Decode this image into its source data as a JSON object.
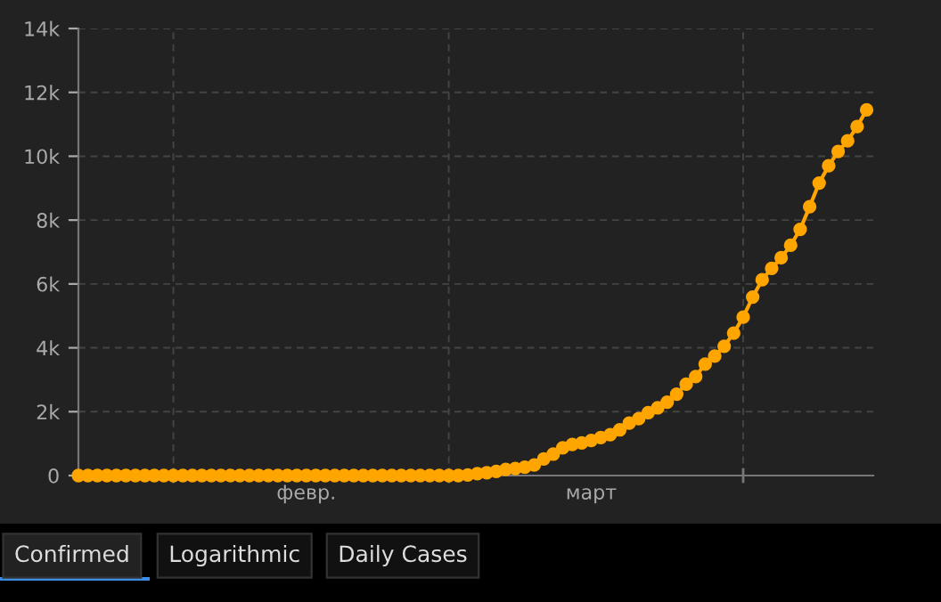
{
  "chart_data": {
    "type": "line",
    "marker": "circle",
    "line_style": "solid",
    "categories": [
      null,
      null,
      null,
      null,
      null,
      null,
      null,
      null,
      null,
      null,
      null,
      null,
      null,
      null,
      null,
      null,
      null,
      null,
      null,
      null,
      null,
      null,
      null,
      null,
      "февр.",
      null,
      null,
      null,
      null,
      null,
      null,
      null,
      null,
      null,
      null,
      null,
      null,
      null,
      null,
      null,
      null,
      null,
      null,
      null,
      null,
      null,
      null,
      null,
      null,
      null,
      null,
      null,
      null,
      null,
      "март",
      null,
      null,
      null,
      null,
      null,
      null,
      null,
      null,
      null,
      null,
      null,
      null,
      null,
      null,
      null,
      null,
      null,
      null,
      null,
      null,
      null,
      null,
      null,
      null,
      null,
      null,
      null,
      null,
      null
    ],
    "series": [
      {
        "color": "#ffa500",
        "values": [
          0,
          0,
          0,
          0,
          0,
          0,
          0,
          0,
          0,
          0,
          0,
          0,
          0,
          0,
          0,
          0,
          0,
          0,
          0,
          0,
          0,
          0,
          0,
          0,
          0,
          0,
          0,
          0,
          0,
          0,
          0,
          0,
          0,
          0,
          0,
          0,
          0,
          0,
          0,
          0,
          0,
          20,
          60,
          90,
          130,
          190,
          220,
          260,
          330,
          520,
          670,
          870,
          970,
          1020,
          1100,
          1190,
          1280,
          1430,
          1640,
          1780,
          1970,
          2120,
          2300,
          2550,
          2860,
          3100,
          3490,
          3740,
          4050,
          4460,
          4960,
          5590,
          6130,
          6490,
          6820,
          7210,
          7710,
          8420,
          9160,
          9700,
          10150,
          10480,
          10930,
          11450
        ]
      }
    ],
    "ylim": [
      0,
      14000
    ],
    "yticks": [
      0,
      {
        "value": 2000,
        "label": "2k"
      },
      {
        "value": 4000,
        "label": "4k"
      },
      {
        "value": 6000,
        "label": "6k"
      },
      {
        "value": 8000,
        "label": "8k"
      },
      {
        "value": 10000,
        "label": "10k"
      },
      {
        "value": 12000,
        "label": "12k"
      },
      {
        "value": 14000,
        "label": "14k"
      }
    ],
    "grid": "y",
    "annotations": [
      "Confirmed",
      "Logarithmic",
      "Daily Cases"
    ]
  }
}
